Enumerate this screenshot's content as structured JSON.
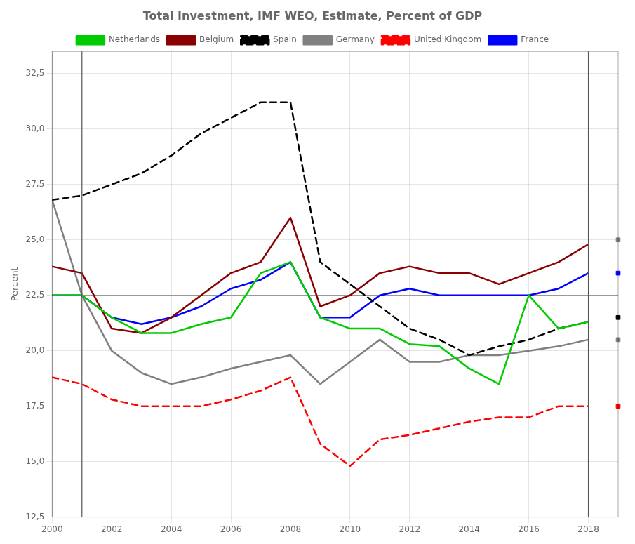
{
  "chart_data": {
    "type": "line",
    "title": "Total Investment, IMF WEO, Estimate, Percent of GDP",
    "y_label": "Percent",
    "x": [
      2000,
      2001,
      2002,
      2003,
      2004,
      2005,
      2006,
      2007,
      2008,
      2009,
      2010,
      2011,
      2012,
      2013,
      2014,
      2015,
      2016,
      2017,
      2018
    ],
    "series": [
      {
        "name": "Netherlands",
        "color": "#00cc00",
        "line_style": "solid",
        "values": [
          22.5,
          22.5,
          21.5,
          20.8,
          20.8,
          21.2,
          21.5,
          23.5,
          24.0,
          21.5,
          21.0,
          21.0,
          20.3,
          20.2,
          19.2,
          18.5,
          22.5,
          21.0,
          21.3
        ]
      },
      {
        "name": "Belgium",
        "color": "#8b0000",
        "line_style": "solid",
        "values": [
          23.8,
          23.5,
          21.0,
          20.8,
          21.5,
          22.5,
          23.5,
          24.0,
          26.0,
          22.0,
          22.5,
          23.5,
          23.8,
          23.5,
          23.5,
          23.0,
          23.5,
          24.0,
          24.8
        ]
      },
      {
        "name": "Spain",
        "color": "#000000",
        "line_style": "dashed",
        "values": [
          26.8,
          27.0,
          27.5,
          28.0,
          28.8,
          29.8,
          30.5,
          31.2,
          31.2,
          24.0,
          23.0,
          22.0,
          21.0,
          20.5,
          19.8,
          20.2,
          20.5,
          21.0,
          21.3
        ]
      },
      {
        "name": "Germany",
        "color": "#808080",
        "line_style": "solid",
        "values": [
          26.8,
          22.5,
          20.0,
          19.0,
          18.5,
          18.8,
          19.2,
          19.5,
          19.8,
          18.5,
          19.5,
          20.5,
          19.5,
          19.5,
          19.8,
          19.8,
          20.0,
          20.2,
          20.5
        ]
      },
      {
        "name": "United Kingdom",
        "color": "#ff0000",
        "line_style": "dashed",
        "values": [
          18.8,
          18.5,
          17.8,
          17.5,
          17.5,
          17.5,
          17.8,
          18.2,
          18.8,
          15.8,
          14.8,
          16.0,
          16.2,
          16.5,
          16.8,
          17.0,
          17.0,
          17.5,
          17.5
        ]
      },
      {
        "name": "France",
        "color": "#0000ff",
        "line_style": "solid",
        "values": [
          22.5,
          22.5,
          21.5,
          21.2,
          21.5,
          22.0,
          22.8,
          23.2,
          24.0,
          21.5,
          21.5,
          22.5,
          22.8,
          22.5,
          22.5,
          22.5,
          22.5,
          22.8,
          23.5
        ]
      },
      {
        "type": "scatter",
        "marker": "square",
        "x": [
          2019,
          2019,
          2019,
          2019,
          2019
        ],
        "values": [
          25.0,
          23.5,
          21.5,
          20.5,
          17.5
        ],
        "colors": [
          "#808080",
          "#0000ff",
          "#000000",
          "#808080",
          "#ff0000"
        ]
      }
    ],
    "xlim": [
      2000,
      2019
    ],
    "ylim": [
      12.5,
      33.5
    ],
    "xticks": [
      2000,
      2002,
      2004,
      2006,
      2008,
      2010,
      2012,
      2014,
      2016,
      2018
    ],
    "yticks": [
      {
        "value": 12.5,
        "label": "12,5"
      },
      {
        "value": 15.0,
        "label": "15,0"
      },
      {
        "value": 17.5,
        "label": "17,5"
      },
      {
        "value": 20.0,
        "label": "20,0"
      },
      {
        "value": 22.5,
        "label": "22,5"
      },
      {
        "value": 25.0,
        "label": "25,0"
      },
      {
        "value": 27.5,
        "label": "27,5"
      },
      {
        "value": 30.0,
        "label": "30,0"
      },
      {
        "value": 32.5,
        "label": "32,5"
      }
    ],
    "hlines": [
      {
        "value": 22.5,
        "color": "#999999"
      }
    ],
    "vlines": [
      {
        "value": 2001,
        "color": "#555555"
      },
      {
        "value": 2018,
        "color": "#555555"
      }
    ],
    "grid": true,
    "legend": "top"
  }
}
